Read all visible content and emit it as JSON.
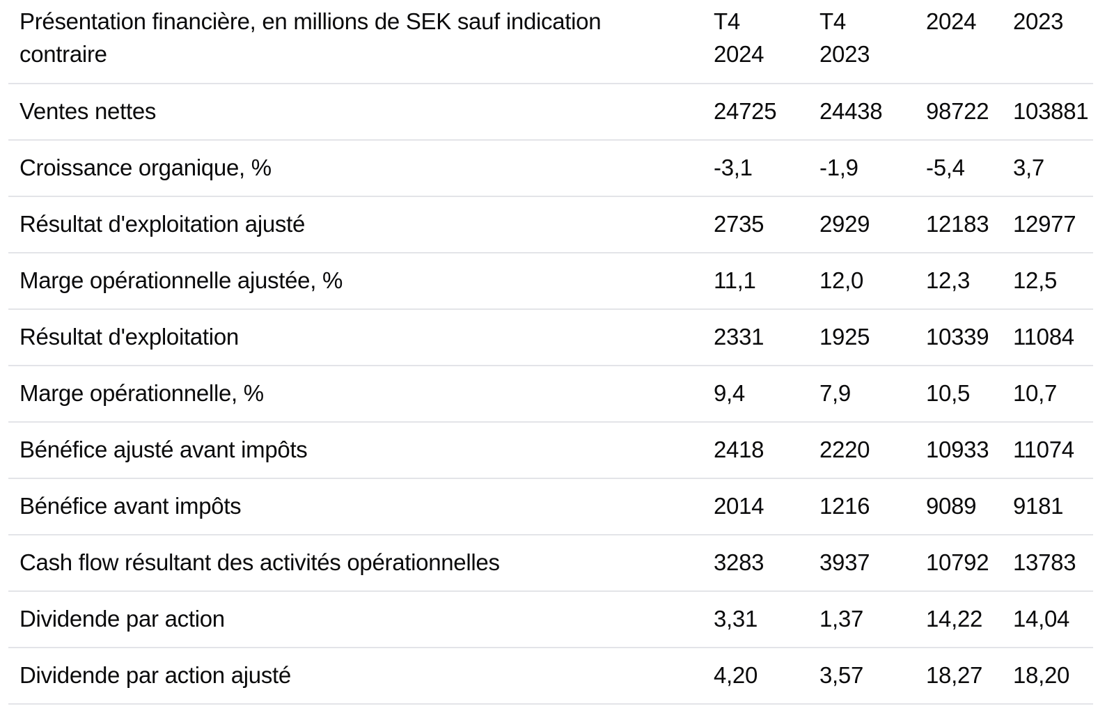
{
  "table": {
    "header": {
      "title": "Présentation financière, en millions de SEK sauf indication\ncontraire",
      "columns": [
        "T4\n2024",
        "T4\n2023",
        "2024",
        "2023"
      ]
    },
    "rows": [
      {
        "label": "Ventes nettes",
        "values": [
          "24725",
          "24438",
          "98722",
          "103881"
        ]
      },
      {
        "label": "Croissance organique, %",
        "values": [
          "-3,1",
          "-1,9",
          "-5,4",
          "3,7"
        ]
      },
      {
        "label": "Résultat d'exploitation ajusté",
        "values": [
          "2735",
          "2929",
          "12183",
          "12977"
        ]
      },
      {
        "label": "Marge opérationnelle ajustée, %",
        "values": [
          "11,1",
          "12,0",
          "12,3",
          "12,5"
        ]
      },
      {
        "label": "Résultat d'exploitation",
        "values": [
          "2331",
          "1925",
          "10339",
          "11084"
        ]
      },
      {
        "label": "Marge opérationnelle, %",
        "values": [
          "9,4",
          "7,9",
          "10,5",
          "10,7"
        ]
      },
      {
        "label": "Bénéfice ajusté avant impôts",
        "values": [
          "2418",
          "2220",
          "10933",
          "11074"
        ]
      },
      {
        "label": "Bénéfice avant impôts",
        "values": [
          "2014",
          "1216",
          "9089",
          "9181"
        ]
      },
      {
        "label": "Cash flow résultant des activités opérationnelles",
        "values": [
          "3283",
          "3937",
          "10792",
          "13783"
        ]
      },
      {
        "label": "Dividende par action",
        "values": [
          "3,31",
          "1,37",
          "14,22",
          "14,04"
        ]
      },
      {
        "label": "Dividende par action ajusté",
        "values": [
          "4,20",
          "3,57",
          "18,27",
          "18,20"
        ]
      }
    ]
  },
  "colors": {
    "text": "#0a0a0b",
    "divider": "#e3e4e8",
    "background": "#ffffff"
  }
}
